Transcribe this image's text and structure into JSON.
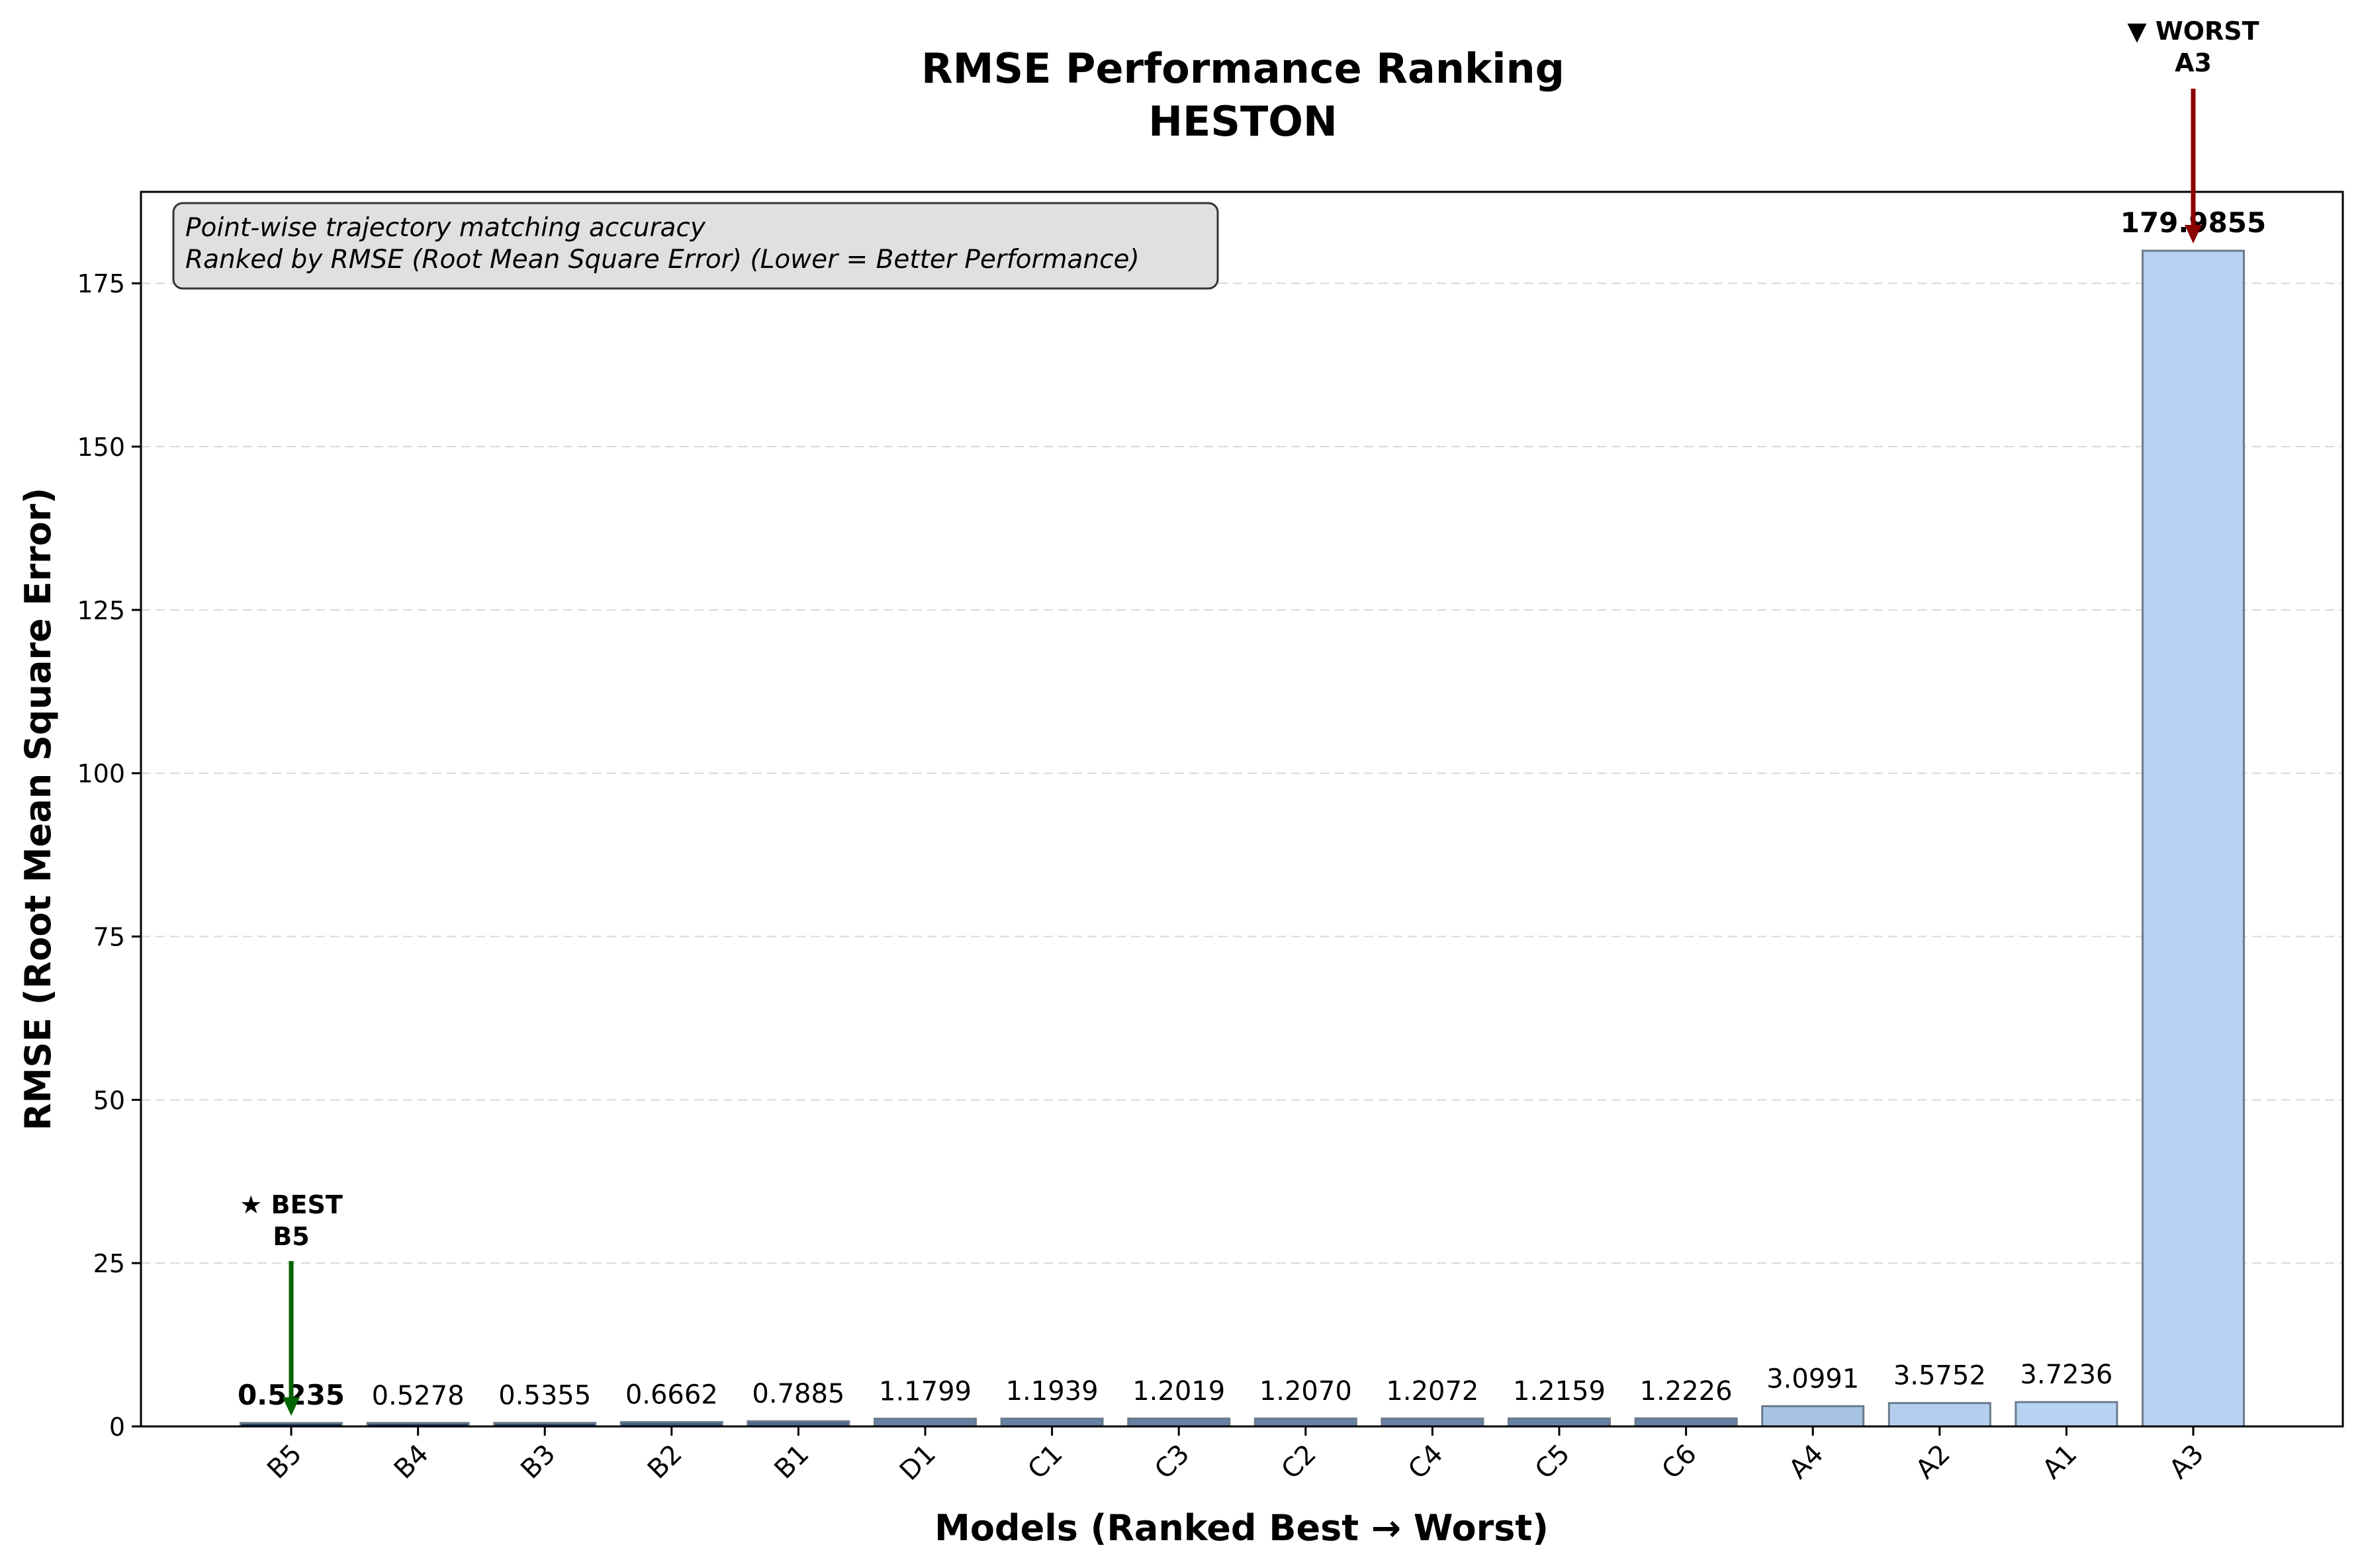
{
  "chart_data": {
    "type": "bar",
    "title": "RMSE Performance Ranking",
    "subtitle": "HESTON",
    "xlabel": "Models (Ranked Best → Worst)",
    "ylabel": "RMSE (Root Mean Square Error)",
    "categories": [
      "B5",
      "B4",
      "B3",
      "B2",
      "B1",
      "D1",
      "C1",
      "C3",
      "C2",
      "C4",
      "C5",
      "C6",
      "A4",
      "A2",
      "A1",
      "A3"
    ],
    "values": [
      0.5235,
      0.5278,
      0.5355,
      0.6662,
      0.7885,
      1.1799,
      1.1939,
      1.2019,
      1.207,
      1.2072,
      1.2159,
      1.2226,
      3.0991,
      3.5752,
      3.7236,
      179.9855
    ],
    "value_labels": [
      "0.5235",
      "0.5278",
      "0.5355",
      "0.6662",
      "0.7885",
      "1.1799",
      "1.1939",
      "1.2019",
      "1.2070",
      "1.2072",
      "1.2159",
      "1.2226",
      "3.0991",
      "3.5752",
      "3.7236",
      "179.9855"
    ],
    "ylim": [
      0,
      189
    ],
    "yticks": [
      0,
      25,
      50,
      75,
      100,
      125,
      150,
      175
    ],
    "grid": "y-dashed",
    "bar_color_dark": "#1f3b63",
    "bar_color_light": "#b8d3f1",
    "annotation_box": {
      "line1": "Point-wise trajectory matching accuracy",
      "line2": "Ranked by RMSE (Root Mean Square Error) (Lower = Better Performance)"
    },
    "best": {
      "label": "★ BEST",
      "model": "B5",
      "color": "#006400"
    },
    "worst": {
      "label": "▼ WORST",
      "model": "A3",
      "color": "#8b0000"
    }
  }
}
